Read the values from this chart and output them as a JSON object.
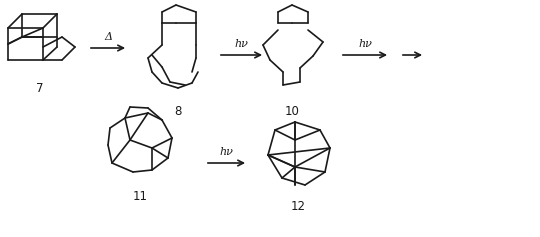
{
  "bg_color": "#ffffff",
  "line_color": "#1a1a1a",
  "fig_width": 5.4,
  "fig_height": 2.37,
  "dpi": 100,
  "compounds": {
    "7_label": "7",
    "8_label": "8",
    "10_label": "10",
    "11_label": "11",
    "12_label": "12"
  },
  "arrows": {
    "a1_label": "Δ",
    "a2_label": "hν",
    "a3_label": "hν",
    "a4_label": "hν"
  }
}
